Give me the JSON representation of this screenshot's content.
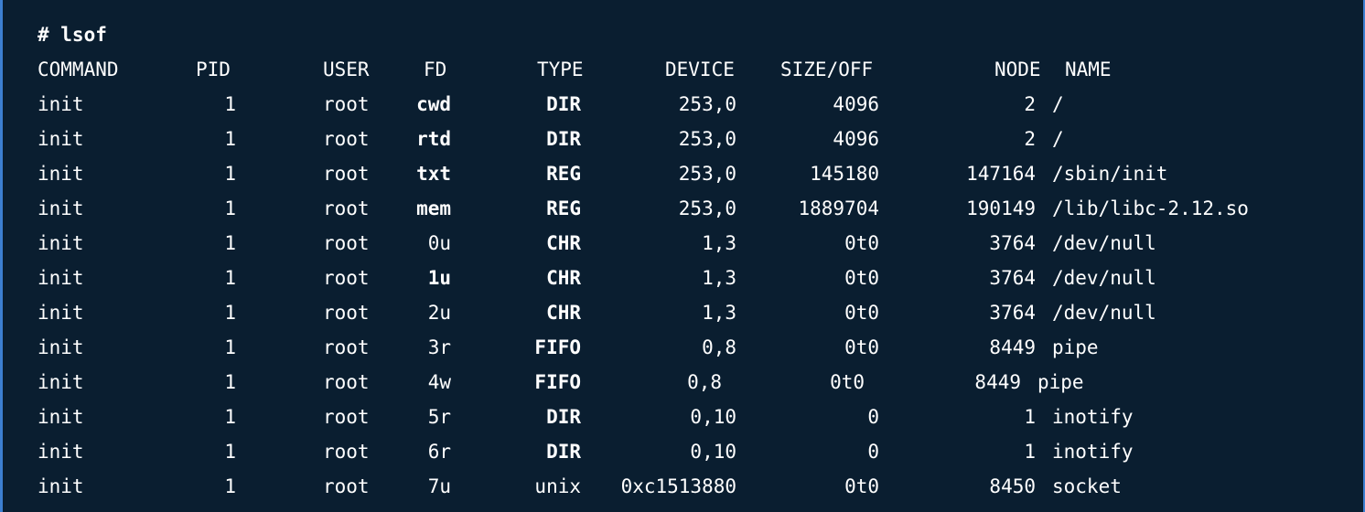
{
  "prompt": {
    "text": "# lsof"
  },
  "columns": [
    "COMMAND",
    "PID",
    "USER",
    "FD",
    "TYPE",
    "DEVICE",
    "SIZE/OFF",
    "NODE",
    "NAME"
  ],
  "rows": [
    {
      "command": "init",
      "pid": "1",
      "user": "root",
      "fd": "cwd",
      "fd_bold": true,
      "type": "DIR",
      "type_bold": true,
      "device": "253,0",
      "size": "4096",
      "node": "2",
      "name": "/"
    },
    {
      "command": "init",
      "pid": "1",
      "user": "root",
      "fd": "rtd",
      "fd_bold": true,
      "type": "DIR",
      "type_bold": true,
      "device": "253,0",
      "size": "4096",
      "node": "2",
      "name": "/"
    },
    {
      "command": "init",
      "pid": "1",
      "user": "root",
      "fd": "txt",
      "fd_bold": true,
      "type": "REG",
      "type_bold": true,
      "device": "253,0",
      "size": "145180",
      "node": "147164",
      "name": "/sbin/init"
    },
    {
      "command": "init",
      "pid": "1",
      "user": "root",
      "fd": "mem",
      "fd_bold": true,
      "type": "REG",
      "type_bold": true,
      "device": "253,0",
      "size": "1889704",
      "node": "190149",
      "name": "/lib/libc-2.12.so"
    },
    {
      "command": "init",
      "pid": "1",
      "user": "root",
      "fd": "0u",
      "fd_bold": false,
      "type": "CHR",
      "type_bold": true,
      "device": "1,3",
      "size": "0t0",
      "node": "3764",
      "name": "/dev/null"
    },
    {
      "command": "init",
      "pid": "1",
      "user": "root",
      "fd": "1u",
      "fd_bold": true,
      "type": "CHR",
      "type_bold": true,
      "device": "1,3",
      "size": "0t0",
      "node": "3764",
      "name": "/dev/null"
    },
    {
      "command": "init",
      "pid": "1",
      "user": "root",
      "fd": "2u",
      "fd_bold": false,
      "type": "CHR",
      "type_bold": true,
      "device": "1,3",
      "size": "0t0",
      "node": "3764",
      "name": "/dev/null"
    },
    {
      "command": "init",
      "pid": "1",
      "user": "root",
      "fd": "3r",
      "fd_bold": false,
      "type": "FIFO",
      "type_bold": true,
      "device": "0,8",
      "size": "0t0",
      "node": "8449",
      "name": "pipe"
    },
    {
      "command": "init",
      "pid": "1",
      "user": "root",
      "fd": "4w",
      "fd_bold": false,
      "type": "FIFO",
      "type_bold": true,
      "device": "0,8",
      "size": "0t0",
      "node": "8449",
      "name": "pipe",
      "shifted": true
    },
    {
      "command": "init",
      "pid": "1",
      "user": "root",
      "fd": "5r",
      "fd_bold": false,
      "type": "DIR",
      "type_bold": true,
      "device": "0,10",
      "size": "0",
      "node": "1",
      "name": "inotify"
    },
    {
      "command": "init",
      "pid": "1",
      "user": "root",
      "fd": "6r",
      "fd_bold": false,
      "type": "DIR",
      "type_bold": true,
      "device": "0,10",
      "size": "0",
      "node": "1",
      "name": "inotify"
    },
    {
      "command": "init",
      "pid": "1",
      "user": "root",
      "fd": "7u",
      "fd_bold": false,
      "type": "unix",
      "type_bold": false,
      "device": "0xc1513880",
      "size": "0t0",
      "node": "8450",
      "name": "socket"
    }
  ]
}
